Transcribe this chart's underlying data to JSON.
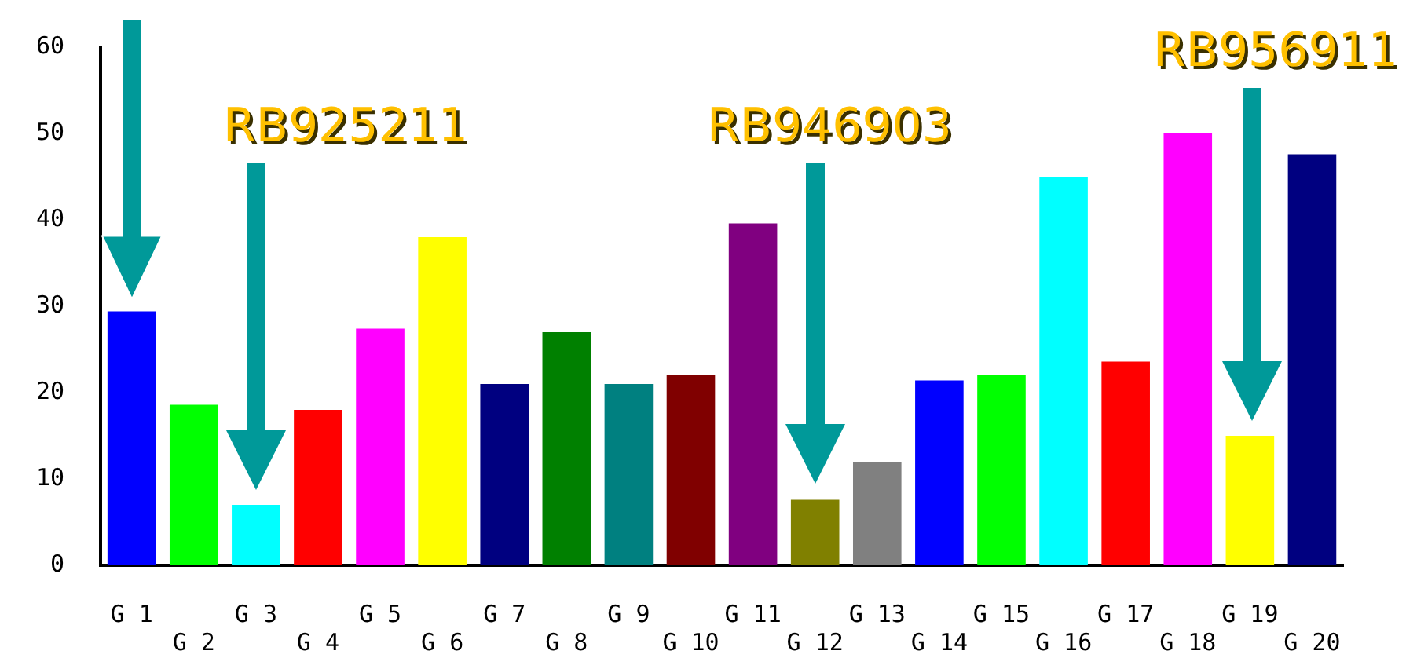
{
  "chart_data": {
    "type": "bar",
    "categories": [
      "G 1",
      "G 2",
      "G 3",
      "G 4",
      "G 5",
      "G 6",
      "G 7",
      "G 8",
      "G 9",
      "G 10",
      "G 11",
      "G 12",
      "G 13",
      "G 14",
      "G 15",
      "G 16",
      "G 17",
      "G 18",
      "G 19",
      "G 20"
    ],
    "values": [
      29.4,
      18.6,
      7,
      18,
      27.4,
      38,
      21,
      27,
      21,
      22,
      39.6,
      7.6,
      12,
      21.4,
      22,
      45,
      23.6,
      50,
      15,
      47.6
    ],
    "colors": [
      "#0000ff",
      "#00ff00",
      "#00ffff",
      "#ff0000",
      "#ff00ff",
      "#ffff00",
      "#000080",
      "#008000",
      "#008080",
      "#800000",
      "#800080",
      "#808000",
      "#808080",
      "#0000ff",
      "#00ff00",
      "#00ffff",
      "#ff0000",
      "#ff00ff",
      "#ffff00",
      "#000080"
    ],
    "ylim": [
      0,
      60
    ],
    "yticks": [
      0,
      10,
      20,
      30,
      40,
      50,
      60
    ],
    "grid": false,
    "legend": false,
    "annotations": [
      "RB925211",
      "RB946903",
      "RB956911"
    ]
  }
}
